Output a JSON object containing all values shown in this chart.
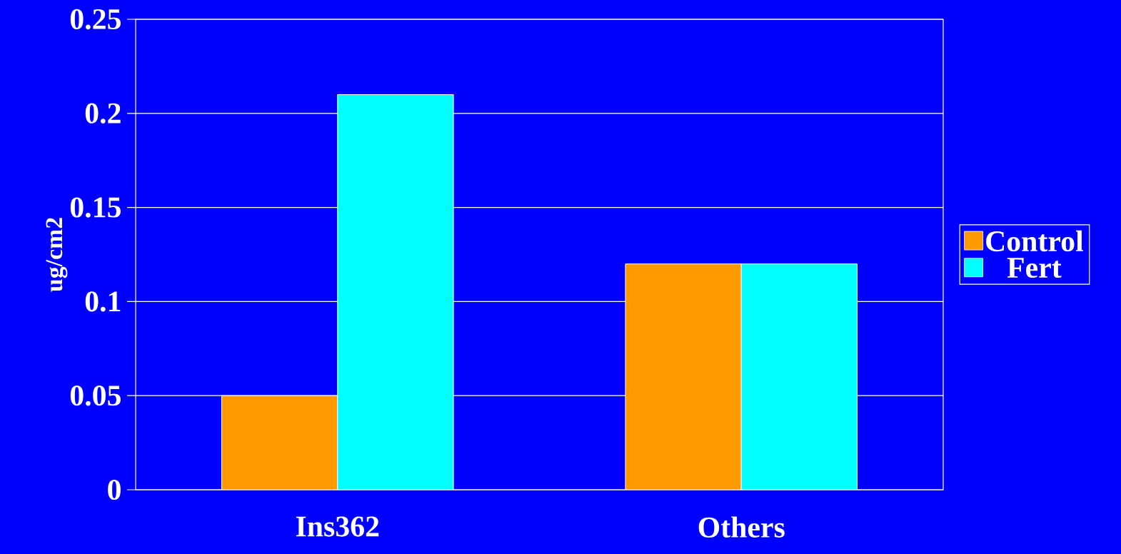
{
  "chart_data": {
    "type": "bar",
    "categories": [
      "Ins362",
      "Others"
    ],
    "series": [
      {
        "name": "Control",
        "color": "#ff9900",
        "values": [
          0.05,
          0.12
        ]
      },
      {
        "name": "Fert",
        "color": "#00ffff",
        "values": [
          0.21,
          0.12
        ]
      }
    ],
    "ylabel": "ug/cm2",
    "ylim": [
      0,
      0.25
    ],
    "yticks": [
      0,
      0.05,
      0.1,
      0.15,
      0.2,
      0.25
    ],
    "grid": "y",
    "legend": "right"
  }
}
